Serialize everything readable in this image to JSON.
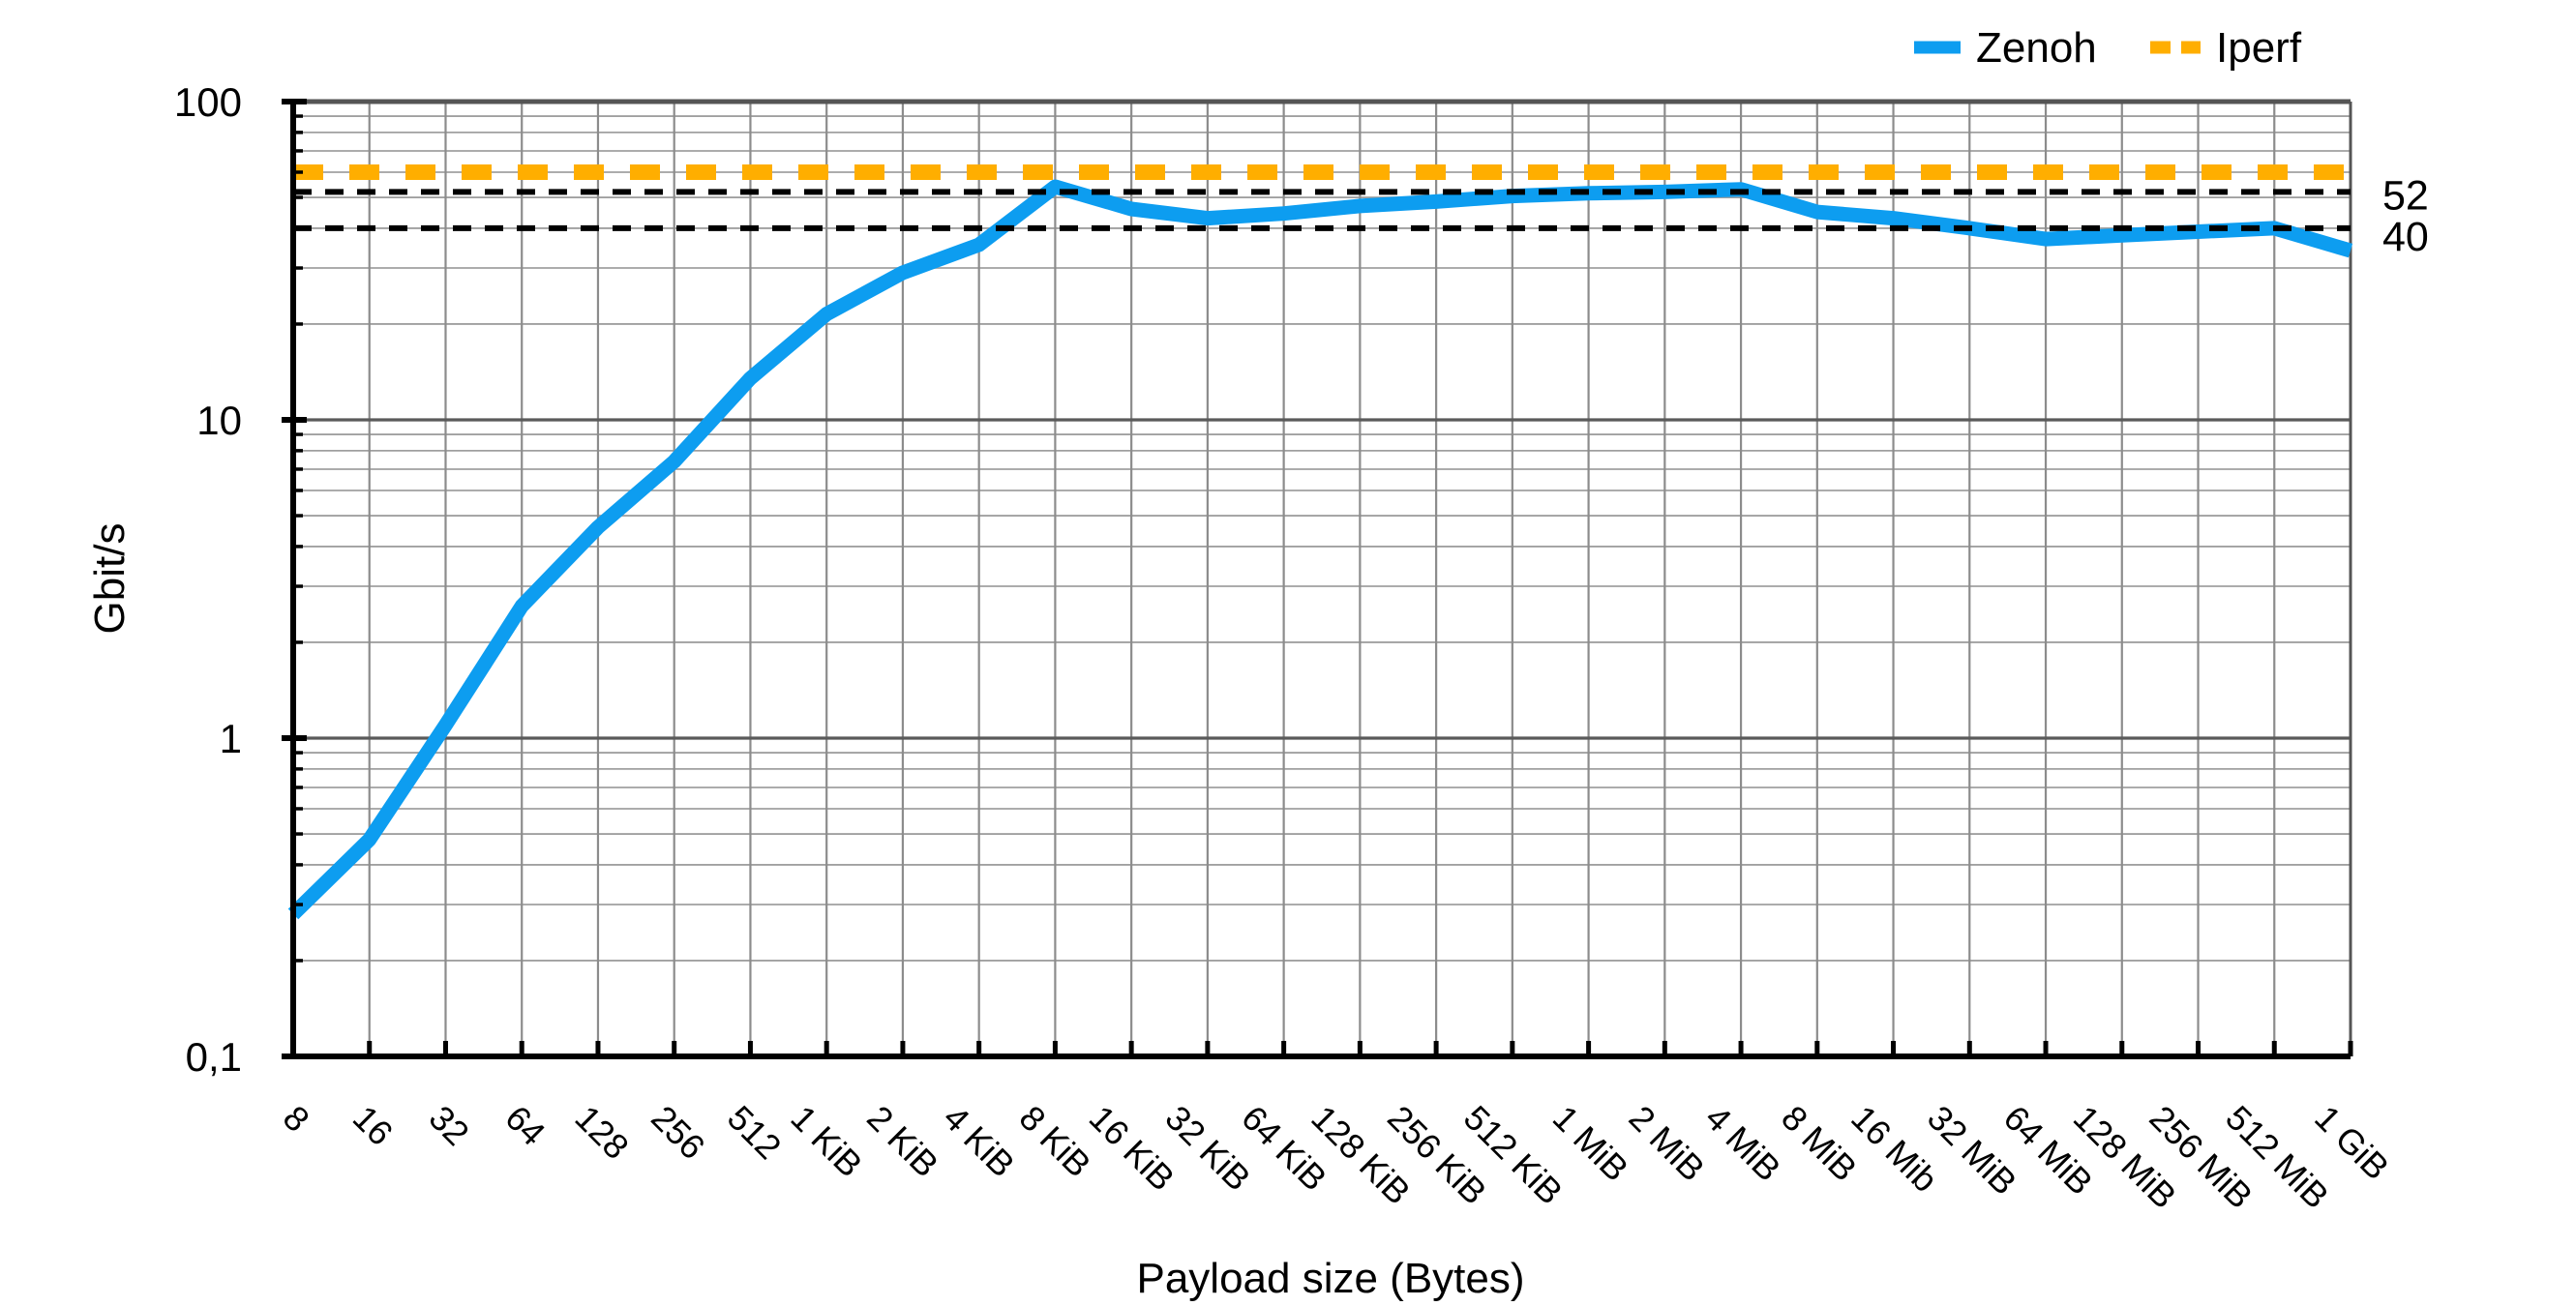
{
  "chart_data": {
    "type": "line",
    "title": "",
    "xlabel": "Payload size (Bytes)",
    "ylabel": "Gbit/s",
    "y_scale": "log",
    "ylim": [
      0.1,
      100
    ],
    "y_tick_labels": [
      "100",
      "10",
      "1",
      "0,1"
    ],
    "y_tick_values": [
      100,
      10,
      1,
      0.1
    ],
    "grid": true,
    "legend_position": "top-right",
    "categories": [
      "8",
      "16",
      "32",
      "64",
      "128",
      "256",
      "512",
      "1 KiB",
      "2 KiB",
      "4 KiB",
      "8 KiB",
      "16 KiB",
      "32 KiB",
      "64 KiB",
      "128 KiB",
      "256 KiB",
      "512 KiB",
      "1 MiB",
      "2 MiB",
      "4 MiB",
      "8 MiB",
      "16 Mib",
      "32 MiB",
      "64 MiB",
      "128 MiB",
      "256 MiB",
      "512 MiB",
      "1 GiB"
    ],
    "series": [
      {
        "name": "Zenoh",
        "color": "#0D9DF0",
        "line_style": "solid",
        "values": [
          0.28,
          0.48,
          1.1,
          2.6,
          4.6,
          7.4,
          13.5,
          21.5,
          29,
          35.5,
          54,
          46,
          43,
          44.5,
          47,
          48.5,
          50.5,
          51.5,
          52,
          53,
          45,
          43,
          40,
          37,
          38,
          39,
          40,
          34
        ]
      },
      {
        "name": "Iperf",
        "color": "#FFAE00",
        "line_style": "dashed",
        "constant_value": 60
      }
    ],
    "reference_lines": [
      {
        "label": "52",
        "value": 52,
        "color": "#000000",
        "style": "dashed"
      },
      {
        "label": "40",
        "value": 40,
        "color": "#000000",
        "style": "dashed"
      }
    ]
  },
  "colors": {
    "zenoh": "#0D9DF0",
    "iperf": "#FFAE00",
    "axis": "#000000",
    "grid_major": "#5a5a5a",
    "grid_minor": "#a0a0a0",
    "grid_vertical": "#8c8c8c"
  }
}
